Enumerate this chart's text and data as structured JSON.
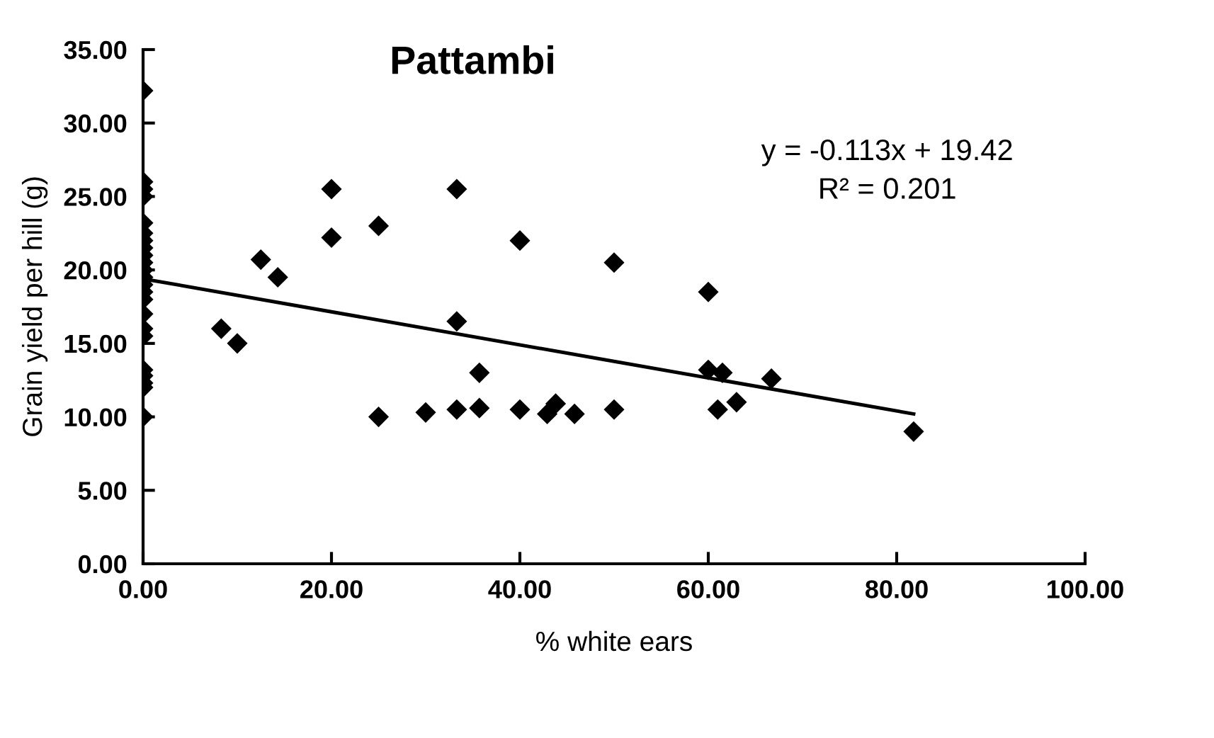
{
  "chart_data": {
    "type": "scatter",
    "title": "Pattambi",
    "xlabel": "% white ears",
    "ylabel": "Grain yield per hill (g)",
    "grid": false,
    "legend": false,
    "xlim": [
      0,
      100
    ],
    "xticks": [
      {
        "value": 0,
        "label": "0.00"
      },
      {
        "value": 20,
        "label": "20.00"
      },
      {
        "value": 40,
        "label": "40.00"
      },
      {
        "value": 60,
        "label": "60.00"
      },
      {
        "value": 80,
        "label": "80.00"
      },
      {
        "value": 100,
        "label": "100.00"
      }
    ],
    "ylim": [
      0,
      35
    ],
    "yticks": [
      {
        "value": 0,
        "label": "0.00"
      },
      {
        "value": 5,
        "label": "5.00"
      },
      {
        "value": 10,
        "label": "10.00"
      },
      {
        "value": 15,
        "label": "15.00"
      },
      {
        "value": 20,
        "label": "20.00"
      },
      {
        "value": 25,
        "label": "25.00"
      },
      {
        "value": 30,
        "label": "30.00"
      },
      {
        "value": 35,
        "label": "35.00"
      }
    ],
    "annotations": [
      "y = -0.113x + 19.42",
      "R² = 0.201"
    ],
    "series": [
      {
        "marker": "diamond",
        "color": "#000000",
        "x": [
          0,
          0,
          0,
          0,
          0,
          0,
          0,
          0,
          0,
          0,
          0,
          0,
          0,
          0,
          0,
          0,
          0,
          0,
          0,
          0,
          0,
          0,
          0,
          8.3,
          10,
          12.5,
          14.3,
          20,
          20,
          25,
          25,
          30,
          33.3,
          33.3,
          33.3,
          35.7,
          35.7,
          40,
          40,
          42.9,
          43.8,
          45.8,
          50,
          50,
          60,
          60,
          61.5,
          61,
          63,
          66.7,
          81.8
        ],
        "values": [
          32.2,
          26,
          25.5,
          25,
          23.2,
          22.5,
          22,
          21.5,
          21,
          20.5,
          20,
          19.5,
          19,
          18.5,
          18,
          17,
          16,
          15.5,
          13.2,
          12.8,
          12.3,
          12,
          10,
          16,
          15,
          20.7,
          19.5,
          25.5,
          22.2,
          23,
          10,
          10.3,
          25.5,
          16.5,
          10.5,
          13,
          10.6,
          22,
          10.5,
          10.2,
          10.9,
          10.2,
          20.5,
          10.5,
          18.5,
          13.2,
          13,
          10.5,
          11,
          12.6,
          9
        ]
      },
      {
        "type": "line",
        "marker": "none",
        "color": "#000000",
        "x": [
          0,
          81.8
        ],
        "values": [
          19.4,
          10.2
        ]
      }
    ]
  }
}
